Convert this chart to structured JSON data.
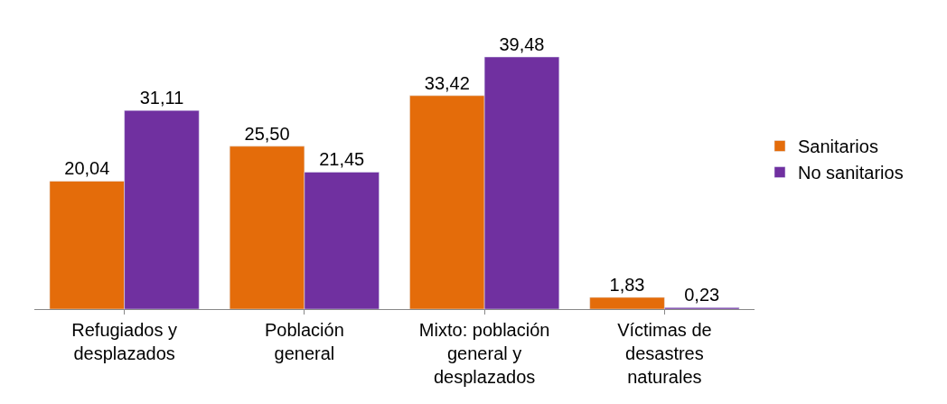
{
  "chart_data": {
    "type": "bar",
    "categories": [
      "Refugiados y\ndesplazados",
      "Población\ngeneral",
      "Mixto: población\ngeneral y\ndesplazados",
      "Víctimas de\ndesastres\nnaturales"
    ],
    "series": [
      {
        "name": "Sanitarios",
        "color": "#e46c0a",
        "values": [
          20.04,
          25.5,
          33.42,
          1.83
        ],
        "value_labels": [
          "20,04",
          "25,50",
          "33,42",
          "1,83"
        ]
      },
      {
        "name": "No sanitarios",
        "color": "#7030a0",
        "values": [
          31.11,
          21.45,
          39.48,
          0.23
        ],
        "value_labels": [
          "31,11",
          "21,45",
          "39,48",
          "0,23"
        ]
      }
    ],
    "legend": "right"
  }
}
